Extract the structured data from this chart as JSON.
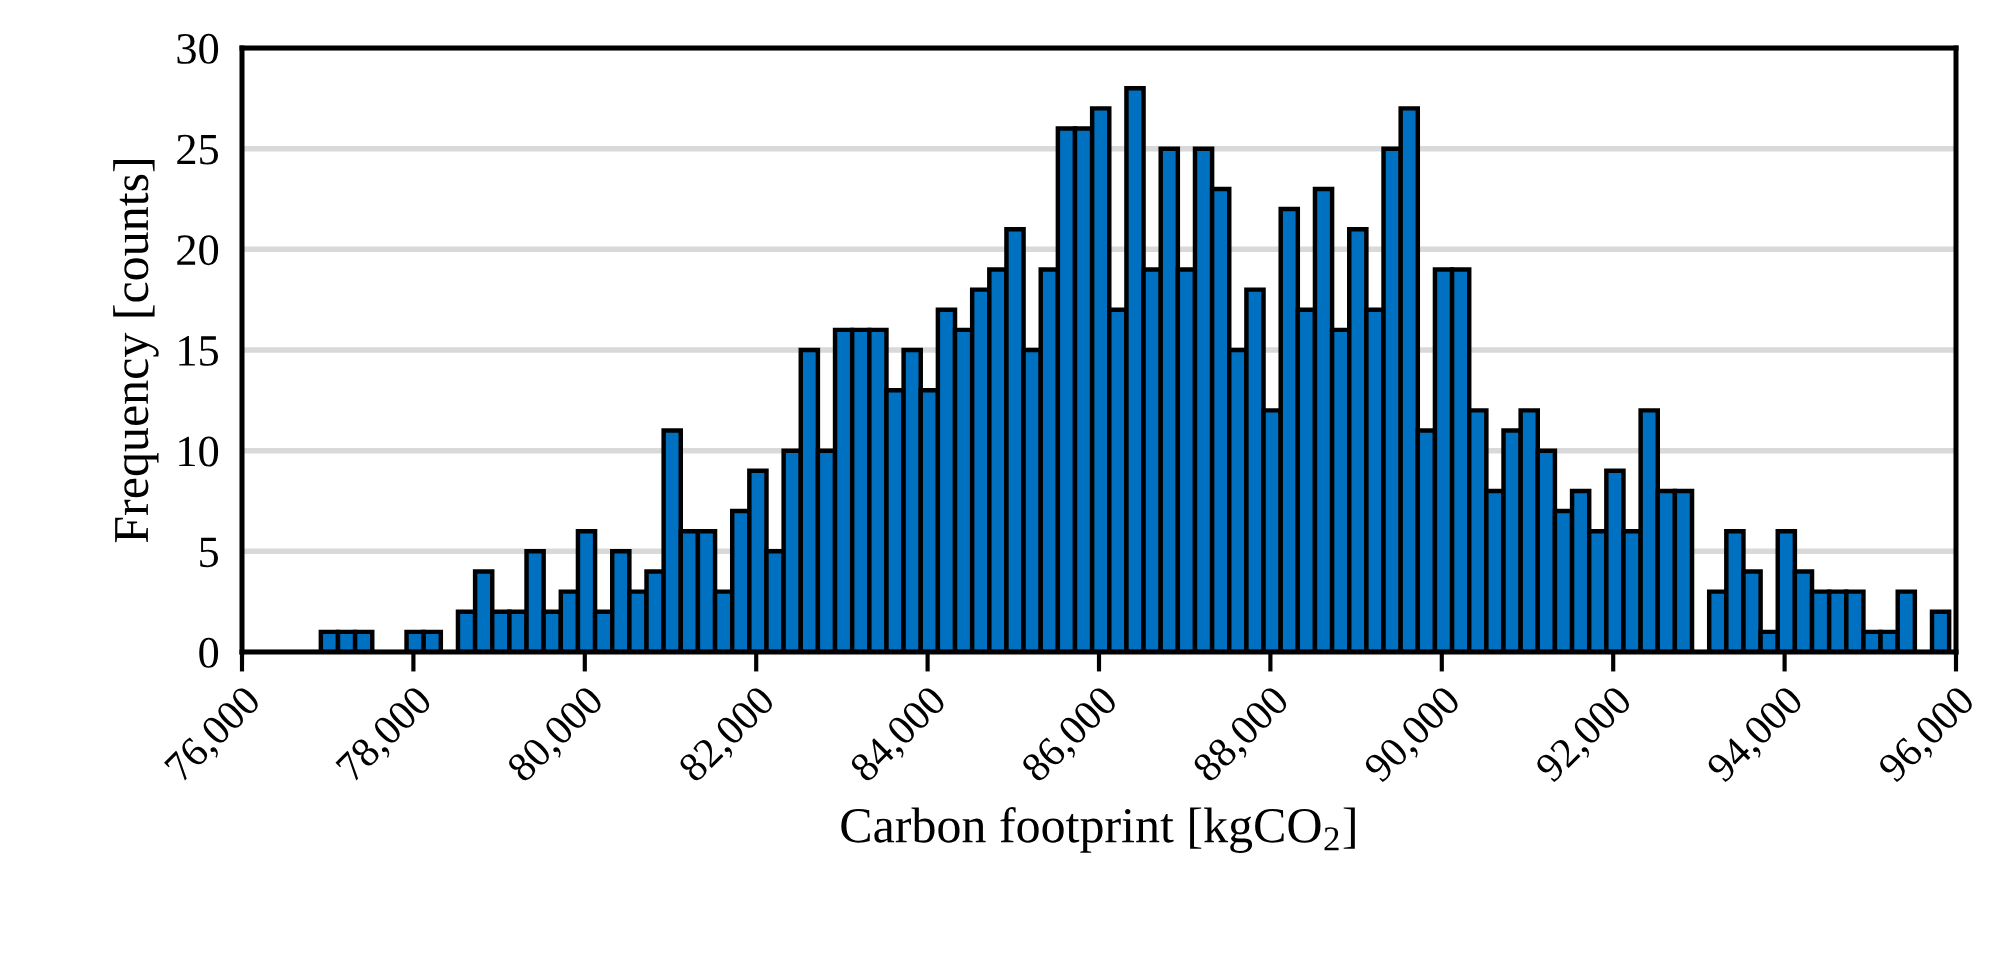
{
  "chart_data": {
    "type": "histogram",
    "xlabel": "Carbon footprint [kgCO$_{2}$]",
    "ylabel": "Frequency [counts]",
    "bins": [
      76920,
      77120,
      77320,
      77520,
      77720,
      77920,
      78120,
      78320,
      78520,
      78720,
      78920,
      79120,
      79320,
      79520,
      79720,
      79920,
      80120,
      80320,
      80520,
      80720,
      80920,
      81120,
      81320,
      81520,
      81720,
      81920,
      82120,
      82320,
      82520,
      82720,
      82920,
      83120,
      83320,
      83520,
      83720,
      83920,
      84120,
      84320,
      84520,
      84720,
      84920,
      85120,
      85320,
      85520,
      85720,
      85920,
      86120,
      86320,
      86520,
      86720,
      86920,
      87120,
      87320,
      87520,
      87720,
      87920,
      88120,
      88320,
      88520,
      88720,
      88920,
      89120,
      89320,
      89520,
      89720,
      89920,
      90120,
      90320,
      90520,
      90720,
      90920,
      91120,
      91320,
      91520,
      91720,
      91920,
      92120,
      92320,
      92520,
      92720,
      92920,
      93120,
      93320,
      93520,
      93720,
      93920,
      94120,
      94320,
      94520,
      94720,
      94920,
      95120,
      95320,
      95520,
      95720,
      95920
    ],
    "values": [
      1,
      1,
      1,
      0,
      0,
      1,
      1,
      0,
      2,
      4,
      2,
      2,
      5,
      2,
      3,
      6,
      2,
      5,
      3,
      4,
      11,
      6,
      6,
      3,
      7,
      9,
      5,
      10,
      15,
      10,
      16,
      16,
      16,
      13,
      15,
      13,
      17,
      16,
      18,
      19,
      21,
      15,
      19,
      26,
      26,
      27,
      17,
      28,
      19,
      25,
      19,
      25,
      23,
      15,
      18,
      12,
      22,
      17,
      23,
      16,
      21,
      17,
      25,
      27,
      11,
      19,
      19,
      12,
      8,
      11,
      12,
      10,
      7,
      8,
      6,
      9,
      6,
      12,
      8,
      8,
      0,
      3,
      6,
      4,
      1,
      6,
      4,
      3,
      3,
      3,
      1,
      1,
      3,
      0,
      2
    ],
    "color": "#0070c0",
    "xlim": [
      76000,
      96000
    ],
    "xticks": [
      {
        "value": 76000,
        "label": "76,000"
      },
      {
        "value": 78000,
        "label": "78,000"
      },
      {
        "value": 80000,
        "label": "80,000"
      },
      {
        "value": 82000,
        "label": "82,000"
      },
      {
        "value": 84000,
        "label": "84,000"
      },
      {
        "value": 86000,
        "label": "86,000"
      },
      {
        "value": 88000,
        "label": "88,000"
      },
      {
        "value": 90000,
        "label": "90,000"
      },
      {
        "value": 92000,
        "label": "92,000"
      },
      {
        "value": 94000,
        "label": "94,000"
      },
      {
        "value": 96000,
        "label": "96,000"
      }
    ],
    "ylim": [
      0,
      30
    ],
    "yticks": [
      0,
      5,
      10,
      15,
      20,
      25,
      30
    ],
    "grid": "y",
    "legend": false
  }
}
